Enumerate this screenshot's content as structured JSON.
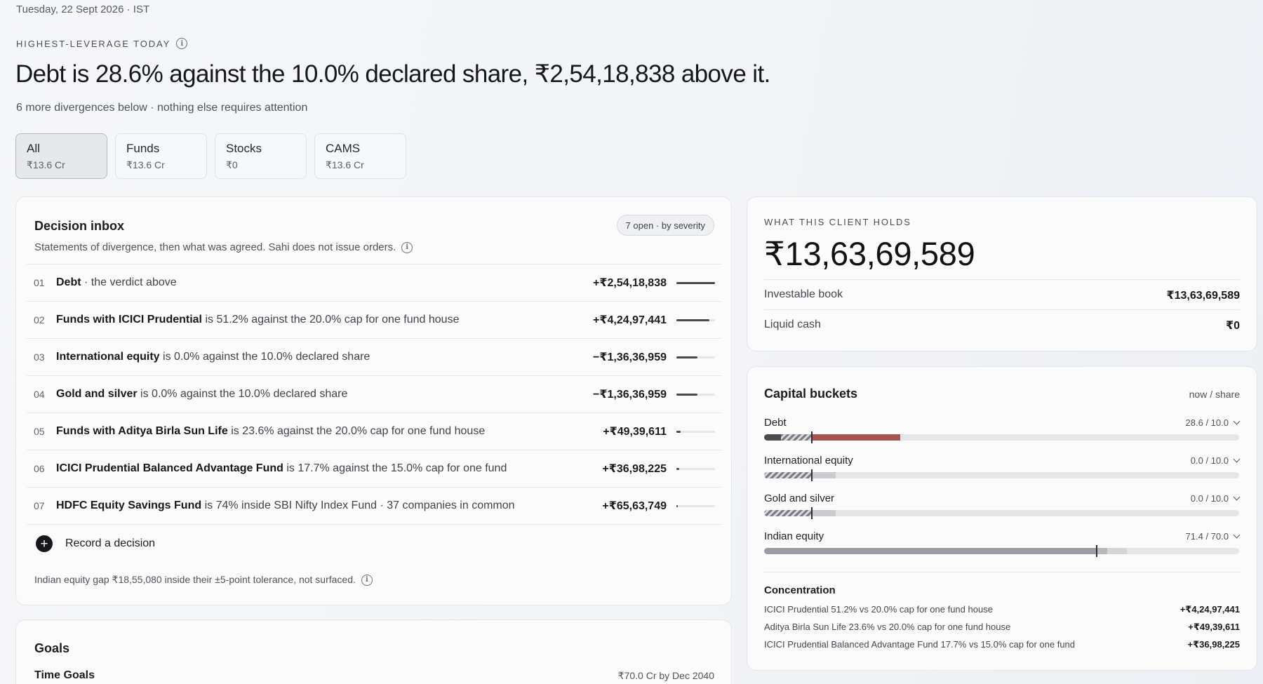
{
  "header": {
    "date": "Tuesday, 22 Sept 2026 · IST",
    "eyebrow": "HIGHEST-LEVERAGE TODAY",
    "headline": "Debt is 28.6% against the 10.0% declared share, ₹2,54,18,838 above it.",
    "subline": "6 more divergences below · nothing else requires attention"
  },
  "filters": [
    {
      "label": "All",
      "value": "₹13.6 Cr"
    },
    {
      "label": "Funds",
      "value": "₹13.6 Cr"
    },
    {
      "label": "Stocks",
      "value": "₹0"
    },
    {
      "label": "CAMS",
      "value": "₹13.6 Cr"
    }
  ],
  "inbox": {
    "title": "Decision inbox",
    "badge": "7 open · by severity",
    "subtitle": "Statements of divergence, then what was agreed. Sahi does not issue orders.",
    "rows": [
      {
        "num": "01",
        "bold": "Debt",
        "rest": " · the verdict above",
        "amount": "+₹2,54,18,838",
        "severity": 1.0
      },
      {
        "num": "02",
        "bold": "Funds with ICICI Prudential",
        "rest": " is 51.2% against the 20.0% cap for one fund house",
        "amount": "+₹4,24,97,441",
        "severity": 0.85
      },
      {
        "num": "03",
        "bold": "International equity",
        "rest": " is 0.0% against the 10.0% declared share",
        "amount": "−₹1,36,36,959",
        "severity": 0.55
      },
      {
        "num": "04",
        "bold": "Gold and silver",
        "rest": " is 0.0% against the 10.0% declared share",
        "amount": "−₹1,36,36,959",
        "severity": 0.55
      },
      {
        "num": "05",
        "bold": "Funds with Aditya Birla Sun Life",
        "rest": " is 23.6% against the 20.0% cap for one fund house",
        "amount": "+₹49,39,611",
        "severity": 0.1
      },
      {
        "num": "06",
        "bold": "ICICI Prudential Balanced Advantage Fund",
        "rest": " is 17.7% against the 15.0% cap for one fund",
        "amount": "+₹36,98,225",
        "severity": 0.08
      },
      {
        "num": "07",
        "bold": "HDFC Equity Savings Fund",
        "rest": " is 74% inside SBI Nifty Index Fund · 37 companies in common",
        "amount": "+₹65,63,749",
        "severity": 0.03
      }
    ],
    "record_label": "Record a decision",
    "footnote": "Indian equity gap ₹18,55,080 inside their ±5-point tolerance, not surfaced."
  },
  "goals": {
    "title": "Goals",
    "row_label": "Time Goals",
    "row_value": "₹70.0 Cr by Dec 2040"
  },
  "holds": {
    "eyebrow": "WHAT THIS CLIENT HOLDS",
    "total": "₹13,63,69,589",
    "items": [
      {
        "label": "Investable book",
        "value": "₹13,63,69,589"
      },
      {
        "label": "Liquid cash",
        "value": "₹0"
      }
    ]
  },
  "buckets": {
    "title": "Capital buckets",
    "hint": "now / share",
    "items": [
      {
        "name": "Debt",
        "ratio": "28.6 / 10.0",
        "now_pct": 28.6,
        "share_pct": 10.0,
        "style": "over",
        "over_color": "#a5544f"
      },
      {
        "name": "International equity",
        "ratio": "0.0 / 10.0",
        "now_pct": 0.0,
        "share_pct": 10.0,
        "style": "under"
      },
      {
        "name": "Gold and silver",
        "ratio": "0.0 / 10.0",
        "now_pct": 0.0,
        "share_pct": 10.0,
        "style": "under"
      },
      {
        "name": "Indian equity",
        "ratio": "71.4 / 70.0",
        "now_pct": 71.4,
        "share_pct": 70.0,
        "style": "within"
      }
    ],
    "concentration_title": "Concentration",
    "concentration": [
      {
        "label": "ICICI Prudential 51.2% vs 20.0% cap for one fund house",
        "value": "+₹4,24,97,441"
      },
      {
        "label": "Aditya Birla Sun Life 23.6% vs 20.0% cap for one fund house",
        "value": "+₹49,39,611"
      },
      {
        "label": "ICICI Prudential Balanced Advantage Fund 17.7% vs 15.0% cap for one fund",
        "value": "+₹36,98,225"
      }
    ]
  }
}
